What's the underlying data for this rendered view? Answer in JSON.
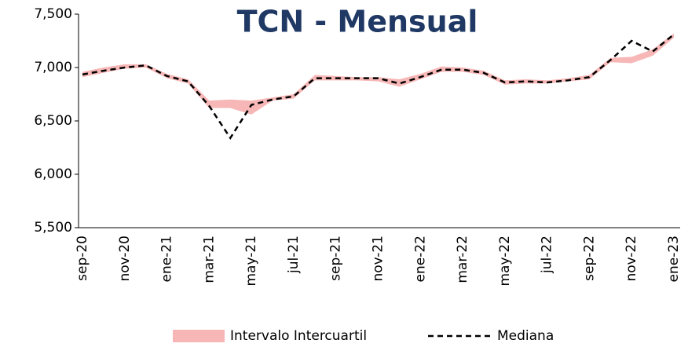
{
  "chart_data": {
    "type": "line",
    "title": "TCN - Mensual",
    "categories": [
      "sep-20",
      null,
      "nov-20",
      null,
      "ene-21",
      null,
      "mar-21",
      null,
      "may-21",
      null,
      "jul-21",
      null,
      "sep-21",
      null,
      "nov-21",
      null,
      "ene-22",
      null,
      "mar-22",
      null,
      "may-22",
      null,
      "jul-22",
      null,
      "sep-22",
      null,
      "nov-22",
      null,
      "ene-23"
    ],
    "series": [
      {
        "name": "Intervalo Intercuartil",
        "color": "#f7b7b7",
        "band": true,
        "low": [
          6910,
          6950,
          6990,
          7000,
          6900,
          6850,
          6620,
          6620,
          6560,
          6690,
          6710,
          6880,
          6880,
          6880,
          6870,
          6820,
          6890,
          6960,
          6960,
          6930,
          6840,
          6850,
          6850,
          6870,
          6890,
          7050,
          7040,
          7110,
          7280
        ],
        "high": [
          6960,
          7000,
          7030,
          7030,
          6940,
          6890,
          6690,
          6700,
          6690,
          6720,
          6750,
          6930,
          6920,
          6910,
          6910,
          6890,
          6940,
          7010,
          7000,
          6970,
          6880,
          6890,
          6880,
          6900,
          6930,
          7090,
          7100,
          7170,
          7320
        ]
      },
      {
        "name": "Mediana",
        "color": "#000000",
        "dashed": true,
        "values": [
          6935,
          6970,
          7000,
          7020,
          6920,
          6870,
          6640,
          6340,
          6650,
          6700,
          6730,
          6900,
          6900,
          6900,
          6900,
          6850,
          6910,
          6980,
          6980,
          6950,
          6860,
          6870,
          6860,
          6880,
          6910,
          7070,
          7250,
          7150,
          7310
        ]
      }
    ],
    "ylim": [
      5500,
      7500
    ],
    "yticks": [
      {
        "value": 5500,
        "label": "5,500"
      },
      {
        "value": 6000,
        "label": "6,000"
      },
      {
        "value": 6500,
        "label": "6,500"
      },
      {
        "value": 7000,
        "label": "7,000"
      },
      {
        "value": 7500,
        "label": "7,500"
      }
    ],
    "grid": false
  }
}
